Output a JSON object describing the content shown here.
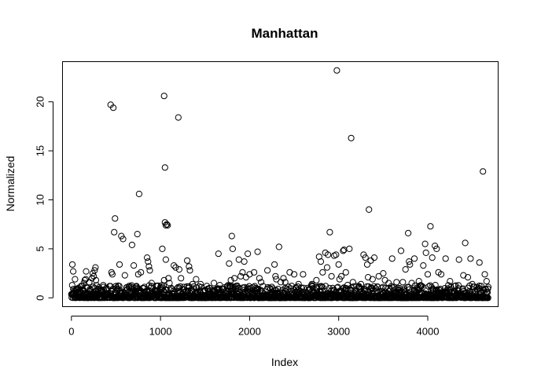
{
  "chart_data": {
    "type": "scatter",
    "title": "Manhattan",
    "xlabel": "Index",
    "ylabel": "Normalized",
    "xlim": [
      -100,
      4790
    ],
    "ylim": [
      -0.9,
      24.1
    ],
    "x_ticks": [
      0,
      1000,
      2000,
      3000,
      4000
    ],
    "y_ticks": [
      0,
      5,
      10,
      15,
      20
    ],
    "x_tick_labels": [
      "0",
      "1000",
      "2000",
      "3000",
      "4000"
    ],
    "y_tick_labels": [
      "0",
      "5",
      "10",
      "15",
      "20"
    ],
    "grid": false,
    "legend": "none",
    "point_shape": "open-circle",
    "n_points_approx": 4680,
    "points": [
      [
        10,
        3.4
      ],
      [
        20,
        2.7
      ],
      [
        40,
        1.9
      ],
      [
        60,
        0.9
      ],
      [
        80,
        0.6
      ],
      [
        120,
        1.2
      ],
      [
        130,
        0.8
      ],
      [
        140,
        1.5
      ],
      [
        150,
        1.8
      ],
      [
        160,
        1.9
      ],
      [
        165,
        2.7
      ],
      [
        180,
        1.0
      ],
      [
        200,
        1.6
      ],
      [
        210,
        0.9
      ],
      [
        230,
        2.0
      ],
      [
        240,
        2.5
      ],
      [
        250,
        2.2
      ],
      [
        260,
        2.8
      ],
      [
        270,
        3.1
      ],
      [
        275,
        1.8
      ],
      [
        300,
        0.9
      ],
      [
        330,
        0.7
      ],
      [
        360,
        1.1
      ],
      [
        400,
        0.9
      ],
      [
        430,
        1.2
      ],
      [
        440,
        19.7
      ],
      [
        470,
        19.4
      ],
      [
        450,
        2.6
      ],
      [
        460,
        2.4
      ],
      [
        480,
        6.7
      ],
      [
        490,
        8.1
      ],
      [
        500,
        1.2
      ],
      [
        520,
        0.8
      ],
      [
        540,
        3.4
      ],
      [
        560,
        6.3
      ],
      [
        580,
        6.0
      ],
      [
        600,
        2.3
      ],
      [
        620,
        0.8
      ],
      [
        650,
        0.5
      ],
      [
        680,
        5.4
      ],
      [
        700,
        3.3
      ],
      [
        730,
        1.2
      ],
      [
        740,
        6.5
      ],
      [
        750,
        2.4
      ],
      [
        760,
        10.6
      ],
      [
        780,
        2.6
      ],
      [
        800,
        1.0
      ],
      [
        820,
        1.1
      ],
      [
        850,
        4.1
      ],
      [
        860,
        3.7
      ],
      [
        870,
        3.2
      ],
      [
        880,
        2.8
      ],
      [
        900,
        1.5
      ],
      [
        950,
        0.7
      ],
      [
        1000,
        1.1
      ],
      [
        1020,
        5.0
      ],
      [
        1040,
        20.6
      ],
      [
        1050,
        13.3
      ],
      [
        1050,
        7.7
      ],
      [
        1060,
        7.4
      ],
      [
        1070,
        7.5
      ],
      [
        1080,
        7.4
      ],
      [
        1060,
        3.9
      ],
      [
        1040,
        1.8
      ],
      [
        1090,
        2.0
      ],
      [
        1100,
        1.5
      ],
      [
        1130,
        0.9
      ],
      [
        1150,
        3.3
      ],
      [
        1170,
        3.1
      ],
      [
        1200,
        18.4
      ],
      [
        1210,
        2.9
      ],
      [
        1230,
        2.0
      ],
      [
        1260,
        1.1
      ],
      [
        1300,
        3.8
      ],
      [
        1320,
        3.2
      ],
      [
        1330,
        2.8
      ],
      [
        1360,
        1.4
      ],
      [
        1400,
        1.9
      ],
      [
        1450,
        1.4
      ],
      [
        1500,
        0.7
      ],
      [
        1550,
        1.0
      ],
      [
        1600,
        1.5
      ],
      [
        1650,
        4.5
      ],
      [
        1700,
        0.9
      ],
      [
        1750,
        1.2
      ],
      [
        1770,
        3.5
      ],
      [
        1790,
        1.8
      ],
      [
        1800,
        6.3
      ],
      [
        1810,
        5.0
      ],
      [
        1830,
        2.0
      ],
      [
        1850,
        1.2
      ],
      [
        1880,
        3.9
      ],
      [
        1900,
        2.2
      ],
      [
        1920,
        2.6
      ],
      [
        1940,
        3.7
      ],
      [
        1960,
        2.1
      ],
      [
        1980,
        4.5
      ],
      [
        2000,
        2.4
      ],
      [
        2020,
        1.0
      ],
      [
        2050,
        2.6
      ],
      [
        2090,
        4.7
      ],
      [
        2110,
        2.0
      ],
      [
        2130,
        1.6
      ],
      [
        2150,
        1.2
      ],
      [
        2200,
        2.8
      ],
      [
        2250,
        1.1
      ],
      [
        2280,
        3.4
      ],
      [
        2290,
        2.2
      ],
      [
        2300,
        1.9
      ],
      [
        2330,
        5.2
      ],
      [
        2350,
        1.6
      ],
      [
        2380,
        2.0
      ],
      [
        2400,
        1.6
      ],
      [
        2450,
        2.6
      ],
      [
        2500,
        2.4
      ],
      [
        2550,
        1.4
      ],
      [
        2600,
        2.4
      ],
      [
        2650,
        1.0
      ],
      [
        2700,
        1.4
      ],
      [
        2750,
        1.8
      ],
      [
        2780,
        4.2
      ],
      [
        2800,
        3.7
      ],
      [
        2820,
        2.6
      ],
      [
        2850,
        4.6
      ],
      [
        2870,
        3.1
      ],
      [
        2880,
        4.4
      ],
      [
        2900,
        6.7
      ],
      [
        2920,
        2.2
      ],
      [
        2950,
        4.3
      ],
      [
        2970,
        4.4
      ],
      [
        2980,
        23.2
      ],
      [
        3000,
        3.4
      ],
      [
        3010,
        1.9
      ],
      [
        3030,
        2.2
      ],
      [
        3050,
        4.8
      ],
      [
        3060,
        4.9
      ],
      [
        3080,
        2.6
      ],
      [
        3100,
        1.3
      ],
      [
        3120,
        5.0
      ],
      [
        3140,
        16.3
      ],
      [
        3160,
        1.6
      ],
      [
        3200,
        1.2
      ],
      [
        3250,
        1.4
      ],
      [
        3280,
        4.4
      ],
      [
        3300,
        4.1
      ],
      [
        3320,
        3.4
      ],
      [
        3330,
        2.1
      ],
      [
        3340,
        9.0
      ],
      [
        3360,
        3.8
      ],
      [
        3380,
        1.9
      ],
      [
        3400,
        4.1
      ],
      [
        3450,
        2.2
      ],
      [
        3500,
        2.5
      ],
      [
        3520,
        1.8
      ],
      [
        3560,
        1.5
      ],
      [
        3600,
        4.0
      ],
      [
        3650,
        1.6
      ],
      [
        3700,
        4.8
      ],
      [
        3720,
        1.6
      ],
      [
        3750,
        2.9
      ],
      [
        3780,
        6.6
      ],
      [
        3790,
        3.7
      ],
      [
        3800,
        3.4
      ],
      [
        3820,
        1.5
      ],
      [
        3850,
        4.0
      ],
      [
        3900,
        1.7
      ],
      [
        3950,
        3.3
      ],
      [
        3970,
        5.5
      ],
      [
        3980,
        4.6
      ],
      [
        4000,
        2.4
      ],
      [
        4030,
        7.3
      ],
      [
        4050,
        4.1
      ],
      [
        4080,
        5.3
      ],
      [
        4100,
        5.0
      ],
      [
        4120,
        2.6
      ],
      [
        4150,
        2.4
      ],
      [
        4200,
        4.0
      ],
      [
        4250,
        1.7
      ],
      [
        4300,
        1.2
      ],
      [
        4350,
        3.9
      ],
      [
        4400,
        2.3
      ],
      [
        4420,
        5.6
      ],
      [
        4450,
        2.1
      ],
      [
        4480,
        4.0
      ],
      [
        4500,
        1.4
      ],
      [
        4550,
        1.1
      ],
      [
        4580,
        3.6
      ],
      [
        4600,
        1.2
      ],
      [
        4620,
        12.9
      ],
      [
        4640,
        2.4
      ],
      [
        4660,
        1.7
      ],
      [
        4680,
        1.1
      ]
    ]
  }
}
